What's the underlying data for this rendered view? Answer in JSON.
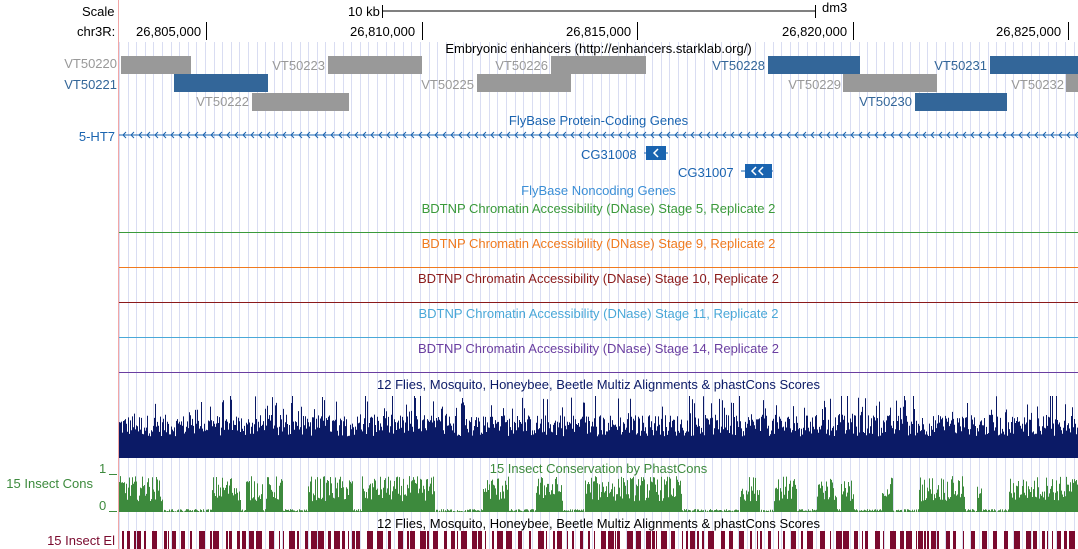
{
  "ruler": {
    "scale_label": "Scale",
    "scale_size": "10 kb",
    "assembly": "dm3",
    "chrom_label": "chr3R:",
    "ticks": [
      "26,805,000",
      "26,810,000",
      "26,815,000",
      "26,820,000",
      "26,825,000"
    ]
  },
  "tracks": {
    "enhancers": {
      "title": "Embryonic enhancers (http://enhancers.starklab.org/)",
      "items": [
        {
          "name": "VT50220",
          "color": "#999999"
        },
        {
          "name": "VT50221",
          "color": "#336699"
        },
        {
          "name": "VT50222",
          "color": "#999999"
        },
        {
          "name": "VT50223",
          "color": "#999999"
        },
        {
          "name": "VT50225",
          "color": "#999999"
        },
        {
          "name": "VT50226",
          "color": "#999999"
        },
        {
          "name": "VT50228",
          "color": "#336699"
        },
        {
          "name": "VT50229",
          "color": "#999999"
        },
        {
          "name": "VT50230",
          "color": "#336699"
        },
        {
          "name": "VT50231",
          "color": "#336699"
        },
        {
          "name": "VT50232",
          "color": "#999999"
        }
      ]
    },
    "flybase_coding": {
      "title": "FlyBase Protein-Coding Genes",
      "side_label": "5-HT7",
      "genes": [
        "CG31008",
        "CG31007"
      ],
      "color": "#1a64b0"
    },
    "flybase_noncoding": {
      "title": "FlyBase Noncoding Genes",
      "color": "#3b8fd6"
    },
    "dnase": [
      {
        "title": "BDTNP Chromatin Accessibility (DNase) Stage 5, Replicate 2",
        "color": "#3a9a3a"
      },
      {
        "title": "BDTNP Chromatin Accessibility (DNase) Stage 9, Replicate 2",
        "color": "#f07a1e"
      },
      {
        "title": "BDTNP Chromatin Accessibility (DNase) Stage 10, Replicate 2",
        "color": "#8b1a1a"
      },
      {
        "title": "BDTNP Chromatin Accessibility (DNase) Stage 11, Replicate 2",
        "color": "#4aa8d8"
      },
      {
        "title": "BDTNP Chromatin Accessibility (DNase) Stage 14, Replicate 2",
        "color": "#6a3ea0"
      }
    ],
    "multiz": {
      "title": "12 Flies, Mosquito, Honeybee, Beetle Multiz Alignments & phastCons Scores",
      "color": "#0b1a66"
    },
    "insect_cons": {
      "title": "15 Insect Conservation by PhastCons",
      "side_label": "15 Insect Cons",
      "axis_max": "1",
      "axis_min": "0",
      "color": "#3d8a3d"
    },
    "insect_el": {
      "title": "12 Flies, Mosquito, Honeybee, Beetle Multiz Alignments & phastCons Scores",
      "side_label": "15 Insect El",
      "color": "#7a0a2e"
    }
  }
}
